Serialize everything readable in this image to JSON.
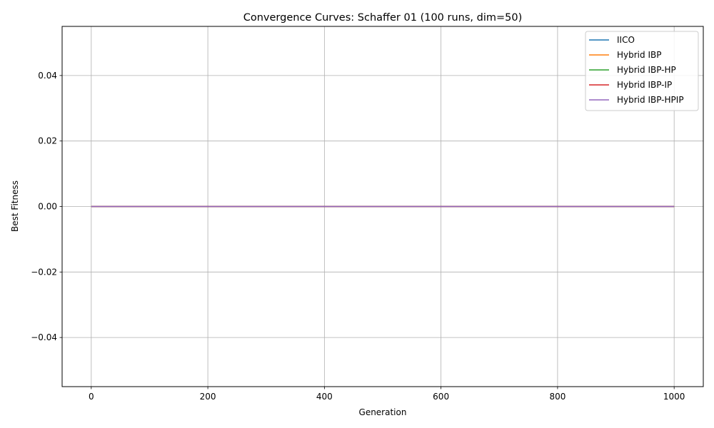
{
  "chart_data": {
    "type": "line",
    "title": "Convergence Curves: Schaffer 01 (100 runs, dim=50)",
    "xlabel": "Generation",
    "ylabel": "Best Fitness",
    "xlim": [
      -50,
      1050
    ],
    "ylim": [
      -0.055,
      0.055
    ],
    "xticks": [
      0,
      200,
      400,
      600,
      800,
      1000
    ],
    "xtick_labels": [
      "0",
      "200",
      "400",
      "600",
      "800",
      "1000"
    ],
    "yticks": [
      0.04,
      0.02,
      0.0,
      -0.02,
      -0.04
    ],
    "ytick_labels": [
      "0.04",
      "0.02",
      "0.00",
      "−0.02",
      "−0.04"
    ],
    "grid": true,
    "legend_position": "top-right",
    "series": [
      {
        "name": "IICO",
        "color": "#1f77b4",
        "x": [
          0,
          1000
        ],
        "y": [
          0,
          0
        ]
      },
      {
        "name": "Hybrid IBP",
        "color": "#ff7f0e",
        "x": [
          0,
          1000
        ],
        "y": [
          0,
          0
        ]
      },
      {
        "name": "Hybrid IBP-HP",
        "color": "#2ca02c",
        "x": [
          0,
          1000
        ],
        "y": [
          0,
          0
        ]
      },
      {
        "name": "Hybrid IBP-IP",
        "color": "#d62728",
        "x": [
          0,
          1000
        ],
        "y": [
          0,
          0
        ]
      },
      {
        "name": "Hybrid IBP-HPIP",
        "color": "#9467bd",
        "x": [
          0,
          1000
        ],
        "y": [
          0,
          0
        ]
      }
    ]
  }
}
